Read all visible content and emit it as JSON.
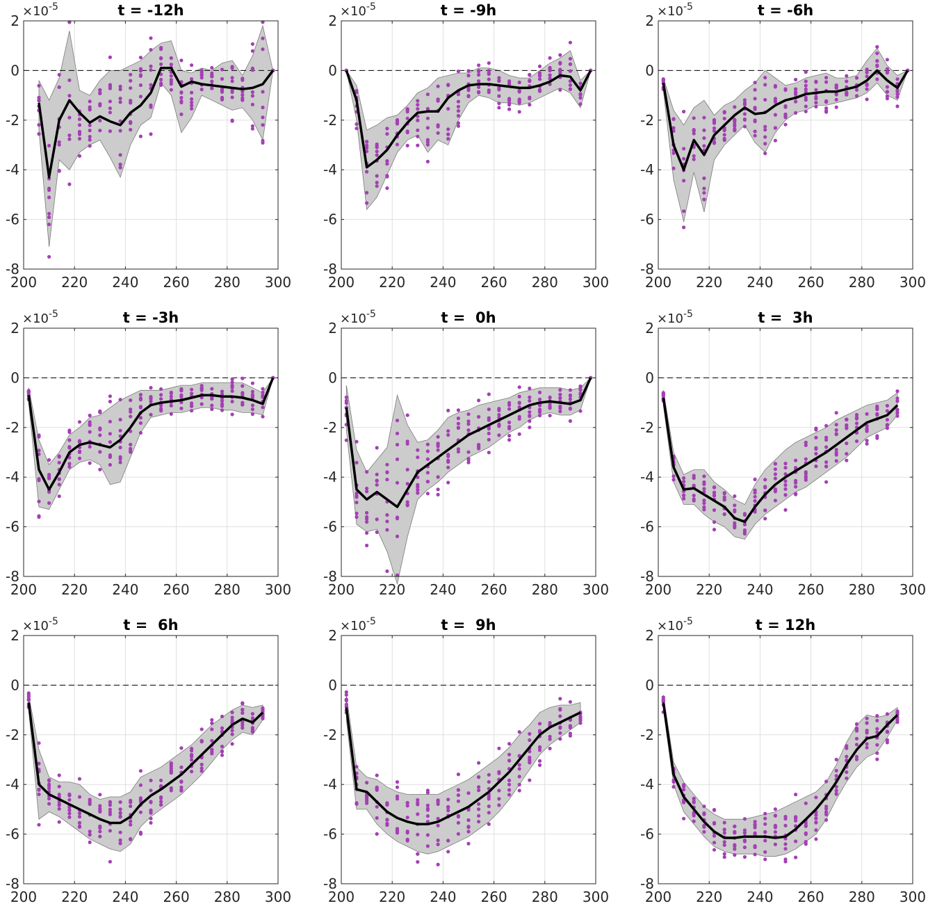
{
  "figure": {
    "exponent_base": "×10",
    "exponent_power": "-5"
  },
  "chart_data": [
    {
      "type": "line",
      "title": "t = -12h",
      "xlim": [
        200,
        300
      ],
      "ylim": [
        -8,
        2
      ],
      "xticks": [
        200,
        220,
        240,
        260,
        280,
        300
      ],
      "yticks": [
        -8,
        -6,
        -4,
        -2,
        0,
        2
      ],
      "grid": true,
      "reference_line": 0,
      "mean": {
        "x": [
          206,
          210,
          214,
          218,
          222,
          226,
          230,
          234,
          238,
          242,
          246,
          250,
          254,
          258,
          262,
          266,
          270,
          274,
          278,
          282,
          286,
          290,
          294,
          298
        ],
        "y": [
          -1.3,
          -4.3,
          -2.0,
          -1.2,
          -1.7,
          -2.1,
          -1.85,
          -2.05,
          -2.2,
          -1.7,
          -1.4,
          -0.9,
          0.1,
          0.1,
          -0.65,
          -0.45,
          -0.55,
          -0.6,
          -0.65,
          -0.7,
          -0.75,
          -0.7,
          -0.55,
          0.0
        ]
      },
      "band_upper": [
        -0.4,
        -1.2,
        -0.3,
        1.6,
        -0.8,
        -1.0,
        -0.4,
        0.0,
        0.0,
        0.2,
        0.4,
        0.8,
        1.1,
        1.2,
        0.0,
        -0.1,
        0.1,
        0.0,
        0.3,
        0.4,
        -0.2,
        0.6,
        1.8,
        0.0
      ],
      "band_lower": [
        -2.4,
        -7.1,
        -3.6,
        -4.0,
        -3.3,
        -3.0,
        -2.8,
        -3.5,
        -4.3,
        -3.0,
        -2.2,
        -1.9,
        -0.5,
        -1.0,
        -2.5,
        -1.9,
        -1.0,
        -1.2,
        -1.4,
        -1.6,
        -1.5,
        -2.0,
        -2.8,
        0.0
      ]
    },
    {
      "type": "line",
      "title": "t = -9h",
      "xlim": [
        200,
        300
      ],
      "ylim": [
        -8,
        2
      ],
      "xticks": [
        200,
        220,
        240,
        260,
        280,
        300
      ],
      "yticks": [
        -8,
        -6,
        -4,
        -2,
        0,
        2
      ],
      "grid": true,
      "reference_line": 0,
      "mean": {
        "x": [
          202,
          206,
          210,
          214,
          218,
          222,
          226,
          230,
          234,
          238,
          242,
          246,
          250,
          254,
          258,
          262,
          266,
          270,
          274,
          278,
          282,
          286,
          290,
          294,
          298
        ],
        "y": [
          0.0,
          -1.2,
          -3.9,
          -3.6,
          -3.2,
          -2.6,
          -2.1,
          -1.7,
          -1.65,
          -1.65,
          -1.1,
          -0.8,
          -0.6,
          -0.55,
          -0.55,
          -0.6,
          -0.65,
          -0.7,
          -0.7,
          -0.6,
          -0.45,
          -0.2,
          -0.25,
          -0.8,
          0.0
        ]
      },
      "band_upper": [
        0.0,
        -0.6,
        -2.4,
        -2.2,
        -1.9,
        -1.8,
        -1.4,
        -0.9,
        -0.7,
        -0.3,
        -0.2,
        -0.1,
        -0.1,
        0.1,
        0.1,
        0.0,
        -0.2,
        -0.3,
        -0.3,
        0.0,
        0.3,
        0.5,
        0.8,
        -0.4,
        0.0
      ],
      "band_lower": [
        0.0,
        -2.0,
        -5.6,
        -5.1,
        -4.2,
        -3.3,
        -2.8,
        -2.6,
        -3.3,
        -2.8,
        -3.0,
        -2.0,
        -1.3,
        -1.0,
        -1.1,
        -1.3,
        -1.3,
        -1.4,
        -1.3,
        -1.1,
        -0.9,
        -0.7,
        -0.9,
        -1.5,
        0.0
      ]
    },
    {
      "type": "line",
      "title": "t = -6h",
      "xlim": [
        200,
        300
      ],
      "ylim": [
        -8,
        2
      ],
      "xticks": [
        200,
        220,
        240,
        260,
        280,
        300
      ],
      "yticks": [
        -8,
        -6,
        -4,
        -2,
        0,
        2
      ],
      "grid": true,
      "reference_line": 0,
      "mean": {
        "x": [
          202,
          206,
          210,
          214,
          218,
          222,
          226,
          230,
          234,
          238,
          242,
          246,
          250,
          254,
          258,
          262,
          266,
          270,
          274,
          278,
          282,
          286,
          290,
          294,
          298
        ],
        "y": [
          -0.5,
          -3.0,
          -4.0,
          -2.8,
          -3.4,
          -2.6,
          -2.2,
          -1.8,
          -1.5,
          -1.75,
          -1.7,
          -1.4,
          -1.2,
          -1.1,
          -0.95,
          -0.9,
          -0.85,
          -0.85,
          -0.75,
          -0.65,
          -0.4,
          0.0,
          -0.4,
          -0.7,
          0.0
        ]
      },
      "band_upper": [
        -0.3,
        -1.6,
        -2.2,
        -1.5,
        -1.2,
        -1.8,
        -1.4,
        -1.2,
        -0.8,
        -0.5,
        0.0,
        -0.3,
        -0.6,
        -0.5,
        -0.3,
        -0.2,
        -0.1,
        -0.3,
        -0.3,
        -0.2,
        0.4,
        0.9,
        0.2,
        -0.2,
        0.0
      ],
      "band_lower": [
        -0.8,
        -4.4,
        -6.1,
        -4.1,
        -5.7,
        -3.6,
        -3.0,
        -2.6,
        -2.2,
        -2.9,
        -3.3,
        -2.5,
        -2.0,
        -1.7,
        -1.6,
        -1.4,
        -1.4,
        -1.3,
        -1.2,
        -1.1,
        -0.9,
        -0.5,
        -1.0,
        -1.2,
        0.0
      ]
    },
    {
      "type": "line",
      "title": "t = -3h",
      "xlim": [
        200,
        300
      ],
      "ylim": [
        -8,
        2
      ],
      "xticks": [
        200,
        220,
        240,
        260,
        280,
        300
      ],
      "yticks": [
        -8,
        -6,
        -4,
        -2,
        0,
        2
      ],
      "grid": true,
      "reference_line": 0,
      "mean": {
        "x": [
          202,
          206,
          210,
          214,
          218,
          222,
          226,
          230,
          234,
          238,
          242,
          246,
          250,
          254,
          258,
          262,
          266,
          270,
          274,
          278,
          282,
          286,
          290,
          294,
          298
        ],
        "y": [
          -0.7,
          -3.7,
          -4.5,
          -3.8,
          -3.0,
          -2.7,
          -2.6,
          -2.7,
          -2.8,
          -2.5,
          -2.0,
          -1.4,
          -1.1,
          -1.0,
          -0.95,
          -0.9,
          -0.8,
          -0.7,
          -0.7,
          -0.75,
          -0.75,
          -0.8,
          -0.9,
          -1.05,
          0.0
        ]
      },
      "band_upper": [
        -0.4,
        -2.5,
        -3.5,
        -3.0,
        -2.3,
        -2.0,
        -1.6,
        -1.5,
        -1.2,
        -0.9,
        -0.7,
        -0.5,
        -0.5,
        -0.5,
        -0.4,
        -0.3,
        -0.3,
        -0.2,
        -0.2,
        -0.2,
        -0.2,
        -0.2,
        -0.4,
        -0.6,
        0.0
      ],
      "band_lower": [
        -1.0,
        -5.2,
        -5.3,
        -4.5,
        -3.7,
        -3.4,
        -3.3,
        -3.5,
        -4.3,
        -4.2,
        -3.2,
        -2.2,
        -1.6,
        -1.5,
        -1.4,
        -1.4,
        -1.3,
        -1.2,
        -1.2,
        -1.3,
        -1.3,
        -1.4,
        -1.4,
        -1.5,
        0.0
      ]
    },
    {
      "type": "line",
      "title": "t =  0h",
      "xlim": [
        200,
        300
      ],
      "ylim": [
        -8,
        2
      ],
      "xticks": [
        200,
        220,
        240,
        260,
        280,
        300
      ],
      "yticks": [
        -8,
        -6,
        -4,
        -2,
        0,
        2
      ],
      "grid": true,
      "reference_line": 0,
      "mean": {
        "x": [
          202,
          206,
          210,
          214,
          218,
          222,
          226,
          230,
          234,
          238,
          242,
          246,
          250,
          254,
          258,
          262,
          266,
          270,
          274,
          278,
          282,
          286,
          290,
          294,
          298
        ],
        "y": [
          -1.2,
          -4.5,
          -4.9,
          -4.6,
          -4.9,
          -5.2,
          -4.5,
          -3.8,
          -3.5,
          -3.2,
          -2.9,
          -2.6,
          -2.3,
          -2.1,
          -1.9,
          -1.7,
          -1.5,
          -1.3,
          -1.1,
          -1.0,
          -0.95,
          -1.0,
          -1.05,
          -0.9,
          0.0
        ]
      },
      "band_upper": [
        -0.3,
        -2.9,
        -3.8,
        -3.3,
        -2.8,
        -0.7,
        -1.9,
        -2.6,
        -2.5,
        -2.1,
        -1.6,
        -1.4,
        -1.3,
        -1.1,
        -1.0,
        -0.9,
        -0.8,
        -0.6,
        -0.5,
        -0.4,
        -0.4,
        -0.4,
        -0.5,
        -0.4,
        0.0
      ],
      "band_lower": [
        -2.1,
        -5.9,
        -6.2,
        -6.1,
        -7.0,
        -8.3,
        -6.4,
        -4.9,
        -4.5,
        -4.2,
        -3.8,
        -3.5,
        -3.2,
        -3.0,
        -2.8,
        -2.5,
        -2.2,
        -2.0,
        -1.7,
        -1.5,
        -1.4,
        -1.5,
        -1.5,
        -1.3,
        0.0
      ]
    },
    {
      "type": "line",
      "title": "t =  3h",
      "xlim": [
        200,
        300
      ],
      "ylim": [
        -8,
        2
      ],
      "xticks": [
        200,
        220,
        240,
        260,
        280,
        300
      ],
      "yticks": [
        -8,
        -6,
        -4,
        -2,
        0,
        2
      ],
      "grid": true,
      "reference_line": 0,
      "mean": {
        "x": [
          202,
          206,
          210,
          214,
          218,
          222,
          226,
          230,
          234,
          238,
          242,
          246,
          250,
          254,
          258,
          262,
          266,
          270,
          274,
          278,
          282,
          286,
          290,
          294
        ],
        "y": [
          -0.8,
          -3.6,
          -4.5,
          -4.45,
          -4.7,
          -4.95,
          -5.2,
          -5.65,
          -5.8,
          -5.2,
          -4.7,
          -4.3,
          -4.0,
          -3.75,
          -3.5,
          -3.25,
          -3.0,
          -2.7,
          -2.4,
          -2.1,
          -1.8,
          -1.65,
          -1.5,
          -1.1
        ]
      },
      "band_upper": [
        -0.5,
        -3.0,
        -3.9,
        -3.7,
        -3.7,
        -4.2,
        -4.5,
        -4.9,
        -5.1,
        -4.3,
        -3.7,
        -3.3,
        -2.9,
        -2.6,
        -2.4,
        -2.2,
        -2.0,
        -1.7,
        -1.5,
        -1.3,
        -1.1,
        -1.0,
        -0.9,
        -0.6
      ],
      "band_lower": [
        -1.1,
        -4.2,
        -5.1,
        -5.1,
        -5.5,
        -5.8,
        -6.0,
        -6.4,
        -6.5,
        -5.9,
        -5.5,
        -5.2,
        -4.9,
        -4.6,
        -4.4,
        -4.1,
        -3.8,
        -3.5,
        -3.2,
        -2.8,
        -2.4,
        -2.2,
        -2.0,
        -1.5
      ]
    },
    {
      "type": "line",
      "title": "t =  6h",
      "xlim": [
        200,
        300
      ],
      "ylim": [
        -8,
        2
      ],
      "xticks": [
        200,
        220,
        240,
        260,
        280,
        300
      ],
      "yticks": [
        -8,
        -6,
        -4,
        -2,
        0,
        2
      ],
      "grid": true,
      "reference_line": 0,
      "mean": {
        "x": [
          202,
          206,
          210,
          214,
          218,
          222,
          226,
          230,
          234,
          238,
          242,
          246,
          250,
          254,
          258,
          262,
          266,
          270,
          274,
          278,
          282,
          286,
          290,
          294
        ],
        "y": [
          -0.7,
          -4.0,
          -4.4,
          -4.6,
          -4.8,
          -5.0,
          -5.2,
          -5.4,
          -5.55,
          -5.55,
          -5.3,
          -4.8,
          -4.45,
          -4.2,
          -3.9,
          -3.6,
          -3.2,
          -2.8,
          -2.4,
          -2.0,
          -1.6,
          -1.35,
          -1.5,
          -1.1
        ]
      },
      "band_upper": [
        -0.4,
        -2.6,
        -3.7,
        -3.9,
        -3.9,
        -4.0,
        -4.4,
        -4.6,
        -4.5,
        -4.5,
        -4.3,
        -3.7,
        -3.5,
        -3.3,
        -3.0,
        -2.7,
        -2.4,
        -2.0,
        -1.6,
        -1.3,
        -1.0,
        -0.8,
        -0.9,
        -0.8
      ],
      "band_lower": [
        -1.0,
        -5.4,
        -5.1,
        -5.3,
        -5.6,
        -5.9,
        -6.2,
        -6.4,
        -6.6,
        -6.7,
        -6.4,
        -5.7,
        -5.3,
        -5.0,
        -4.7,
        -4.4,
        -4.0,
        -3.6,
        -3.1,
        -2.6,
        -2.2,
        -1.9,
        -2.0,
        -1.4
      ]
    },
    {
      "type": "line",
      "title": "t =  9h",
      "xlim": [
        200,
        300
      ],
      "ylim": [
        -8,
        2
      ],
      "xticks": [
        200,
        220,
        240,
        260,
        280,
        300
      ],
      "yticks": [
        -8,
        -6,
        -4,
        -2,
        0,
        2
      ],
      "grid": true,
      "reference_line": 0,
      "mean": {
        "x": [
          202,
          206,
          210,
          214,
          218,
          222,
          226,
          230,
          234,
          238,
          242,
          246,
          250,
          254,
          258,
          262,
          266,
          270,
          274,
          278,
          282,
          286,
          290,
          294
        ],
        "y": [
          -0.9,
          -4.2,
          -4.3,
          -4.7,
          -5.1,
          -5.35,
          -5.5,
          -5.6,
          -5.6,
          -5.5,
          -5.3,
          -5.1,
          -4.9,
          -4.6,
          -4.3,
          -3.9,
          -3.5,
          -3.0,
          -2.5,
          -2.0,
          -1.7,
          -1.5,
          -1.3,
          -1.1
        ]
      },
      "band_upper": [
        -0.4,
        -3.3,
        -3.7,
        -3.8,
        -4.1,
        -4.3,
        -4.4,
        -4.4,
        -4.4,
        -4.4,
        -4.2,
        -4.0,
        -3.8,
        -3.5,
        -3.2,
        -2.9,
        -2.5,
        -2.0,
        -1.6,
        -1.1,
        -0.9,
        -0.8,
        -0.8,
        -0.7
      ],
      "band_lower": [
        -1.4,
        -5.0,
        -5.0,
        -5.6,
        -6.0,
        -6.3,
        -6.5,
        -6.7,
        -6.8,
        -6.7,
        -6.5,
        -6.3,
        -6.1,
        -5.8,
        -5.5,
        -5.1,
        -4.6,
        -4.0,
        -3.4,
        -2.8,
        -2.4,
        -2.1,
        -1.8,
        -1.5
      ]
    },
    {
      "type": "line",
      "title": "t = 12h",
      "xlim": [
        200,
        300
      ],
      "ylim": [
        -8,
        2
      ],
      "xticks": [
        200,
        220,
        240,
        260,
        280,
        300
      ],
      "yticks": [
        -8,
        -6,
        -4,
        -2,
        0,
        2
      ],
      "grid": true,
      "reference_line": 0,
      "mean": {
        "x": [
          202,
          206,
          210,
          214,
          218,
          222,
          226,
          230,
          234,
          238,
          242,
          246,
          250,
          254,
          258,
          262,
          266,
          270,
          274,
          278,
          282,
          286,
          290,
          294
        ],
        "y": [
          -0.7,
          -3.6,
          -4.5,
          -5.0,
          -5.5,
          -5.9,
          -6.15,
          -6.15,
          -6.1,
          -6.1,
          -6.1,
          -6.15,
          -6.1,
          -5.8,
          -5.4,
          -5.0,
          -4.5,
          -3.9,
          -3.2,
          -2.6,
          -2.15,
          -2.05,
          -1.6,
          -1.2
        ]
      },
      "band_upper": [
        -0.4,
        -3.1,
        -3.9,
        -4.4,
        -4.9,
        -5.2,
        -5.4,
        -5.4,
        -5.4,
        -5.3,
        -5.2,
        -5.1,
        -4.9,
        -4.7,
        -4.5,
        -4.3,
        -3.9,
        -3.2,
        -2.3,
        -1.6,
        -1.2,
        -1.3,
        -1.2,
        -0.9
      ],
      "band_lower": [
        -1.0,
        -4.0,
        -5.1,
        -5.6,
        -6.1,
        -6.5,
        -6.7,
        -6.8,
        -6.8,
        -6.8,
        -6.9,
        -6.9,
        -6.8,
        -6.6,
        -6.3,
        -6.0,
        -5.4,
        -4.6,
        -3.9,
        -3.3,
        -2.9,
        -2.7,
        -2.1,
        -1.4
      ]
    }
  ]
}
